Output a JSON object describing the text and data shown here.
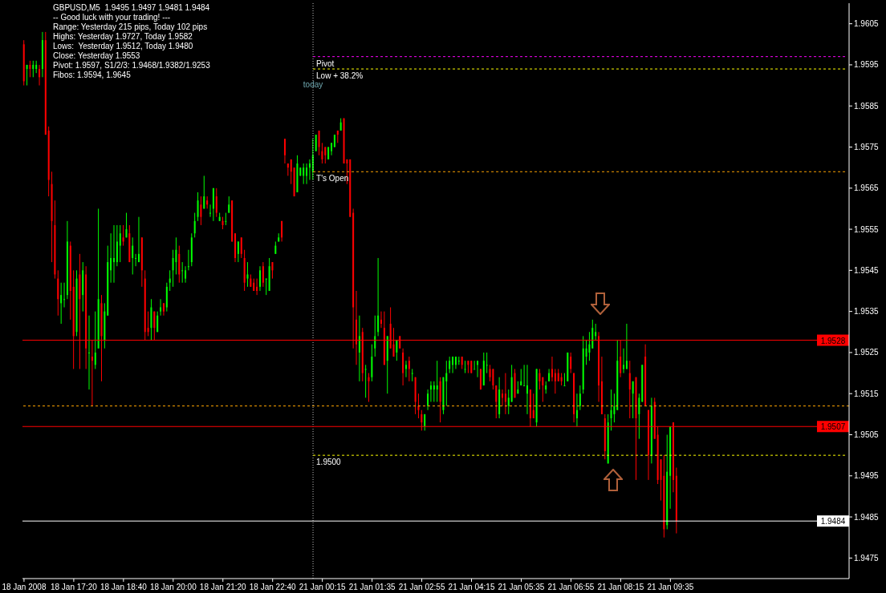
{
  "chart_data": {
    "type": "candlestick",
    "title": "GBPUSD,M5  1.9495 1.9497 1.9481 1.9484",
    "annotations": [
      "-- Good luck with your trading! ---",
      "Range: Yesterday 215 pips, Today 102 pips",
      "Highs: Yesterday 1.9727, Today 1.9582",
      "Lows:  Yesterday 1.9512, Today 1.9480",
      "Close: Yesterday 1.9553",
      "Pivot: 1.9597, S1/2/3: 1.9468/1.9382/1.9253",
      "Fibos: 1.9594, 1.9645",
      "today"
    ],
    "categories": [
      "18 Jan 2008",
      null,
      null,
      null,
      null,
      null,
      null,
      null,
      null,
      null,
      null,
      null,
      null,
      null,
      null,
      null,
      "18 Jan 17:20",
      null,
      null,
      null,
      null,
      null,
      null,
      null,
      null,
      null,
      null,
      null,
      null,
      null,
      null,
      null,
      "18 Jan 18:40",
      null,
      null,
      null,
      null,
      null,
      null,
      null,
      null,
      null,
      null,
      null,
      null,
      null,
      null,
      null,
      "18 Jan 20:00",
      null,
      null,
      null,
      null,
      null,
      null,
      null,
      null,
      null,
      null,
      null,
      null,
      null,
      null,
      null,
      "18 Jan 21:20",
      null,
      null,
      null,
      null,
      null,
      null,
      null,
      null,
      null,
      null,
      null,
      null,
      null,
      null,
      null,
      "18 Jan 22:40",
      null,
      null,
      null,
      null,
      null,
      null,
      null,
      null,
      null,
      null,
      null,
      null,
      null,
      null,
      null,
      "21 Jan 00:15",
      null,
      null,
      null,
      null,
      null,
      null,
      null,
      null,
      null,
      null,
      null,
      null,
      null,
      null,
      null,
      "21 Jan 01:35",
      null,
      null,
      null,
      null,
      null,
      null,
      null,
      null,
      null,
      null,
      null,
      null,
      null,
      null,
      null,
      "21 Jan 02:55",
      null,
      null,
      null,
      null,
      null,
      null,
      null,
      null,
      null,
      null,
      null,
      null,
      null,
      null,
      null,
      "21 Jan 04:15",
      null,
      null,
      null,
      null,
      null,
      null,
      null,
      null,
      null,
      null,
      null,
      null,
      null,
      null,
      null,
      "21 Jan 05:35",
      null,
      null,
      null,
      null,
      null,
      null,
      null,
      null,
      null,
      null,
      null,
      null,
      null,
      null,
      null,
      "21 Jan 06:55",
      null,
      null,
      null,
      null,
      null,
      null,
      null,
      null,
      null,
      null,
      null,
      null,
      null,
      null,
      null,
      "21 Jan 08:15",
      null,
      null,
      null,
      null,
      null,
      null,
      null,
      null,
      null,
      null,
      null,
      null,
      null,
      null,
      null,
      "21 Jan 09:35",
      null,
      null,
      null,
      null,
      null,
      null,
      null,
      null,
      null,
      null,
      null,
      null,
      null,
      null,
      null,
      null,
      null,
      null,
      null,
      null,
      null,
      null,
      null,
      null,
      null,
      null,
      null,
      null,
      null,
      null,
      null,
      null,
      null,
      null,
      null,
      null,
      null,
      null,
      null,
      null,
      null,
      null,
      null,
      null,
      null,
      null,
      null,
      null,
      null,
      null,
      null,
      null,
      null,
      null,
      null,
      null,
      null
    ],
    "ohlc": [
      [
        1.96,
        1.9601,
        1.959,
        1.9591
      ],
      [
        1.9594,
        1.9595,
        1.959,
        1.9595
      ],
      [
        1.9595,
        1.9596,
        1.9592,
        1.9594
      ],
      [
        1.9594,
        1.9596,
        1.9592,
        1.9595
      ],
      [
        1.9594,
        1.9596,
        1.9593,
        1.9595
      ],
      [
        1.9594,
        1.9595,
        1.959,
        1.9592
      ],
      [
        1.9594,
        1.9603,
        1.9592,
        1.9601
      ],
      [
        1.9601,
        1.9603,
        1.9578,
        1.9578
      ],
      [
        1.9579,
        1.958,
        1.9563,
        1.9567
      ],
      [
        1.9566,
        1.9569,
        1.9547,
        1.9557
      ],
      [
        1.9556,
        1.9562,
        1.9543,
        1.9544
      ],
      [
        1.9543,
        1.9545,
        1.9534,
        1.9538
      ],
      [
        1.9537,
        1.9542,
        1.9532,
        1.9539
      ],
      [
        1.9538,
        1.9542,
        1.9536,
        1.9538
      ],
      [
        1.9539,
        1.9557,
        1.9538,
        1.9552
      ],
      [
        1.9551,
        1.9552,
        1.9533,
        1.954
      ],
      [
        1.9541,
        1.9545,
        1.9521,
        1.9529
      ],
      [
        1.953,
        1.9545,
        1.9529,
        1.9543
      ],
      [
        1.9544,
        1.9549,
        1.9521,
        1.9538
      ],
      [
        1.9539,
        1.9547,
        1.9535,
        1.9545
      ],
      [
        1.9544,
        1.9546,
        1.9521,
        1.9526
      ],
      [
        1.9525,
        1.9534,
        1.9516,
        1.9525
      ],
      [
        1.9524,
        1.9528,
        1.9512,
        1.9523
      ],
      [
        1.9522,
        1.9535,
        1.9521,
        1.9525
      ],
      [
        1.9526,
        1.956,
        1.9526,
        1.9538
      ],
      [
        1.9537,
        1.9539,
        1.9518,
        1.9529
      ],
      [
        1.9528,
        1.9537,
        1.9526,
        1.9535
      ],
      [
        1.9534,
        1.9551,
        1.9534,
        1.9547
      ],
      [
        1.9545,
        1.9554,
        1.9542,
        1.9548
      ],
      [
        1.9547,
        1.9556,
        1.9542,
        1.9548
      ],
      [
        1.9547,
        1.9556,
        1.9546,
        1.9552
      ],
      [
        1.9551,
        1.9556,
        1.9547,
        1.9554
      ],
      [
        1.9553,
        1.9556,
        1.9551,
        1.9552
      ],
      [
        1.9553,
        1.9559,
        1.9553,
        1.9555
      ],
      [
        1.9554,
        1.9556,
        1.9547,
        1.9547
      ],
      [
        1.9548,
        1.9553,
        1.9544,
        1.9551
      ],
      [
        1.9548,
        1.9549,
        1.9546,
        1.9548
      ],
      [
        1.9547,
        1.9558,
        1.9547,
        1.9549
      ],
      [
        1.9553,
        1.9553,
        1.9541,
        1.9545
      ],
      [
        1.9543,
        1.9545,
        1.9528,
        1.953
      ],
      [
        1.9531,
        1.9535,
        1.9529,
        1.953
      ],
      [
        1.9531,
        1.9538,
        1.9528,
        1.9536
      ],
      [
        1.9535,
        1.9535,
        1.9528,
        1.9531
      ],
      [
        1.953,
        1.9535,
        1.953,
        1.9534
      ],
      [
        1.9535,
        1.9538,
        1.9534,
        1.9536
      ],
      [
        1.9537,
        1.9537,
        1.9534,
        1.9535
      ],
      [
        1.9536,
        1.9542,
        1.9535,
        1.9541
      ],
      [
        1.9542,
        1.9545,
        1.954,
        1.9543
      ],
      [
        1.9545,
        1.955,
        1.9541,
        1.9548
      ],
      [
        1.9547,
        1.9553,
        1.9544,
        1.955
      ],
      [
        1.9549,
        1.9551,
        1.9542,
        1.9544
      ],
      [
        1.9545,
        1.9547,
        1.9542,
        1.9545
      ],
      [
        1.9543,
        1.9546,
        1.9542,
        1.9545
      ],
      [
        1.9546,
        1.955,
        1.9545,
        1.9546
      ],
      [
        1.9547,
        1.9554,
        1.9546,
        1.9553
      ],
      [
        1.9554,
        1.9559,
        1.9553,
        1.9557
      ],
      [
        1.9558,
        1.9564,
        1.9557,
        1.9562
      ],
      [
        1.9561,
        1.9563,
        1.9556,
        1.9558
      ],
      [
        1.956,
        1.9568,
        1.956,
        1.9563
      ],
      [
        1.9562,
        1.9563,
        1.956,
        1.9561
      ],
      [
        1.9559,
        1.9561,
        1.9558,
        1.9559
      ],
      [
        1.956,
        1.9565,
        1.9557,
        1.9565
      ],
      [
        1.9563,
        1.9565,
        1.9558,
        1.9559
      ],
      [
        1.9557,
        1.9559,
        1.9557,
        1.9558
      ],
      [
        1.9557,
        1.9558,
        1.9555,
        1.9556
      ],
      [
        1.9557,
        1.9559,
        1.9556,
        1.9557
      ],
      [
        1.9559,
        1.9563,
        1.9559,
        1.9561
      ],
      [
        1.9562,
        1.9562,
        1.9552,
        1.9552
      ],
      [
        1.9554,
        1.9554,
        1.9547,
        1.9548
      ],
      [
        1.9549,
        1.9552,
        1.9547,
        1.9552
      ],
      [
        1.9553,
        1.9553,
        1.9548,
        1.9549
      ],
      [
        1.9548,
        1.955,
        1.954,
        1.9542
      ],
      [
        1.9543,
        1.9547,
        1.9541,
        1.9544
      ],
      [
        1.9543,
        1.9544,
        1.9541,
        1.9541
      ],
      [
        1.9542,
        1.9543,
        1.954,
        1.954
      ],
      [
        1.9541,
        1.9543,
        1.9539,
        1.954
      ],
      [
        1.9541,
        1.9546,
        1.954,
        1.9545
      ],
      [
        1.9546,
        1.9547,
        1.9541,
        1.9542
      ],
      [
        1.9543,
        1.9543,
        1.9539,
        1.9543
      ],
      [
        1.954,
        1.9548,
        1.954,
        1.9546
      ],
      [
        1.9547,
        1.9547,
        1.9543,
        1.9545
      ],
      [
        1.9549,
        1.9552,
        1.9549,
        1.9551
      ],
      [
        1.9552,
        1.9554,
        1.9552,
        1.9553
      ],
      [
        1.9557,
        1.9557,
        1.9552,
        1.9553
      ],
      [
        1.9577,
        1.9577,
        1.9571,
        1.9573
      ],
      [
        1.9571,
        1.9571,
        1.9568,
        1.957
      ],
      [
        1.9572,
        1.9572,
        1.9566,
        1.9569
      ],
      [
        1.957,
        1.957,
        1.9563,
        1.9563
      ],
      [
        1.9564,
        1.9573,
        1.9564,
        1.9571
      ],
      [
        1.9568,
        1.957,
        1.9568,
        1.957
      ],
      [
        1.9568,
        1.9571,
        1.9566,
        1.957
      ],
      [
        1.9568,
        1.9571,
        1.9566,
        1.957
      ],
      [
        1.957,
        1.9572,
        1.9567,
        1.9571
      ],
      [
        1.9569,
        1.9577,
        1.9567,
        1.9573
      ],
      [
        1.9574,
        1.9578,
        1.9574,
        1.9578
      ],
      [
        1.9579,
        1.9579,
        1.9573,
        1.9575
      ],
      [
        1.9574,
        1.9576,
        1.9571,
        1.9572
      ],
      [
        1.9575,
        1.9575,
        1.9571,
        1.9573
      ],
      [
        1.9572,
        1.9575,
        1.9572,
        1.9575
      ],
      [
        1.9574,
        1.9576,
        1.9573,
        1.9576
      ],
      [
        1.9575,
        1.9578,
        1.9575,
        1.9578
      ],
      [
        1.9579,
        1.9579,
        1.9576,
        1.9578
      ],
      [
        1.9579,
        1.9582,
        1.9579,
        1.9581
      ],
      [
        1.9582,
        1.9582,
        1.9571,
        1.9571
      ],
      [
        1.9572,
        1.9572,
        1.9566,
        1.9571
      ],
      [
        1.9572,
        1.9572,
        1.9558,
        1.9558
      ],
      [
        1.9559,
        1.956,
        1.9526,
        1.9536
      ],
      [
        1.9533,
        1.954,
        1.9522,
        1.9527
      ],
      [
        1.9525,
        1.9534,
        1.9518,
        1.9529
      ],
      [
        1.953,
        1.9531,
        1.9518,
        1.952
      ],
      [
        1.9521,
        1.9522,
        1.9514,
        1.9521
      ],
      [
        1.9519,
        1.952,
        1.9513,
        1.9518
      ],
      [
        1.9519,
        1.9527,
        1.9518,
        1.9524
      ],
      [
        1.9526,
        1.9534,
        1.9524,
        1.9529
      ],
      [
        1.953,
        1.9548,
        1.9529,
        1.9534
      ],
      [
        1.9533,
        1.9535,
        1.9531,
        1.9532
      ],
      [
        1.9531,
        1.9535,
        1.9522,
        1.9522
      ],
      [
        1.9523,
        1.9529,
        1.9515,
        1.9529
      ],
      [
        1.9532,
        1.9536,
        1.9526,
        1.9526
      ],
      [
        1.9527,
        1.9531,
        1.9524,
        1.9524
      ],
      [
        1.9525,
        1.9528,
        1.9523,
        1.9528
      ],
      [
        1.9529,
        1.9529,
        1.9526,
        1.9526
      ],
      [
        1.9525,
        1.9526,
        1.9517,
        1.952
      ],
      [
        1.9521,
        1.9523,
        1.9519,
        1.9522
      ],
      [
        1.9523,
        1.9524,
        1.9518,
        1.9521
      ],
      [
        1.952,
        1.9521,
        1.9518,
        1.952
      ],
      [
        1.9519,
        1.9519,
        1.951,
        1.9513
      ],
      [
        1.9512,
        1.9515,
        1.9509,
        1.9511
      ],
      [
        1.951,
        1.9511,
        1.9506,
        1.9508
      ],
      [
        1.9507,
        1.951,
        1.9506,
        1.951
      ],
      [
        1.9512,
        1.9516,
        1.9511,
        1.9515
      ],
      [
        1.9516,
        1.9518,
        1.9513,
        1.9517
      ],
      [
        1.9516,
        1.9518,
        1.9513,
        1.9517
      ],
      [
        1.9516,
        1.9523,
        1.9513,
        1.9517
      ],
      [
        1.9518,
        1.9519,
        1.9508,
        1.9513
      ],
      [
        1.9511,
        1.9519,
        1.951,
        1.9519
      ],
      [
        1.9518,
        1.9523,
        1.9512,
        1.952
      ],
      [
        1.9521,
        1.9524,
        1.952,
        1.9523
      ],
      [
        1.9522,
        1.9524,
        1.952,
        1.9524
      ],
      [
        1.9522,
        1.9524,
        1.9521,
        1.9524
      ],
      [
        1.9523,
        1.9524,
        1.9522,
        1.9523
      ],
      [
        1.9524,
        1.9524,
        1.9521,
        1.9522
      ],
      [
        1.9521,
        1.9523,
        1.952,
        1.9521
      ],
      [
        1.9523,
        1.9523,
        1.952,
        1.9522
      ],
      [
        1.9523,
        1.9523,
        1.952,
        1.952
      ],
      [
        1.9521,
        1.9523,
        1.9521,
        1.9521
      ],
      [
        1.9522,
        1.9523,
        1.9519,
        1.9523
      ],
      [
        1.9521,
        1.9521,
        1.9516,
        1.9516
      ],
      [
        1.9517,
        1.9525,
        1.9517,
        1.9523
      ],
      [
        1.9522,
        1.9525,
        1.952,
        1.9522
      ],
      [
        1.9521,
        1.9522,
        1.9518,
        1.9519
      ],
      [
        1.9521,
        1.9521,
        1.9516,
        1.9517
      ],
      [
        1.9517,
        1.9517,
        1.9509,
        1.9513
      ],
      [
        1.951,
        1.9519,
        1.9509,
        1.9516
      ],
      [
        1.9515,
        1.9516,
        1.9512,
        1.9514
      ],
      [
        1.9515,
        1.952,
        1.951,
        1.9513
      ],
      [
        1.9512,
        1.9516,
        1.951,
        1.9514
      ],
      [
        1.9513,
        1.9522,
        1.9513,
        1.9519
      ],
      [
        1.952,
        1.9521,
        1.9514,
        1.9514
      ],
      [
        1.9515,
        1.9518,
        1.9515,
        1.9516
      ],
      [
        1.9517,
        1.9521,
        1.9517,
        1.9518
      ],
      [
        1.9517,
        1.9522,
        1.9517,
        1.9517
      ],
      [
        1.9515,
        1.9522,
        1.951,
        1.9517
      ],
      [
        1.9516,
        1.9516,
        1.9507,
        1.9509
      ],
      [
        1.9511,
        1.9515,
        1.9509,
        1.9509
      ],
      [
        1.9508,
        1.9521,
        1.9507,
        1.9521
      ],
      [
        1.952,
        1.9521,
        1.9516,
        1.9518
      ],
      [
        1.9519,
        1.9519,
        1.9513,
        1.9517
      ],
      [
        1.9516,
        1.9518,
        1.9515,
        1.9517
      ],
      [
        1.9518,
        1.9521,
        1.9518,
        1.952
      ],
      [
        1.9521,
        1.9524,
        1.9518,
        1.9519
      ],
      [
        1.952,
        1.9521,
        1.9515,
        1.9518
      ],
      [
        1.952,
        1.9521,
        1.9518,
        1.9518
      ],
      [
        1.9519,
        1.952,
        1.9517,
        1.9518
      ],
      [
        1.9517,
        1.952,
        1.9517,
        1.9517
      ],
      [
        1.9518,
        1.9525,
        1.9518,
        1.9525
      ],
      [
        1.9524,
        1.9525,
        1.952,
        1.9521
      ],
      [
        1.952,
        1.952,
        1.9508,
        1.951
      ],
      [
        1.9509,
        1.9515,
        1.9507,
        1.9511
      ],
      [
        1.9512,
        1.9517,
        1.9511,
        1.9515
      ],
      [
        1.9516,
        1.9529,
        1.9515,
        1.9526
      ],
      [
        1.9524,
        1.9528,
        1.9522,
        1.9526
      ],
      [
        1.9525,
        1.953,
        1.9523,
        1.9527
      ],
      [
        1.9526,
        1.9533,
        1.9526,
        1.9531
      ],
      [
        1.9529,
        1.9532,
        1.9528,
        1.953
      ],
      [
        1.9529,
        1.953,
        1.9513,
        1.9517
      ],
      [
        1.9518,
        1.9524,
        1.951,
        1.951
      ],
      [
        1.9509,
        1.951,
        1.9499,
        1.9501
      ],
      [
        1.9498,
        1.951,
        1.9498,
        1.9508
      ],
      [
        1.9509,
        1.9516,
        1.9506,
        1.9511
      ],
      [
        1.951,
        1.9515,
        1.9508,
        1.9512
      ],
      [
        1.9511,
        1.9528,
        1.9511,
        1.9523
      ],
      [
        1.9524,
        1.9528,
        1.9519,
        1.952
      ],
      [
        1.9521,
        1.9526,
        1.952,
        1.9522
      ],
      [
        1.9521,
        1.9532,
        1.9521,
        1.9523
      ],
      [
        1.952,
        1.9523,
        1.9509,
        1.9516
      ],
      [
        1.9515,
        1.9518,
        1.9509,
        1.9518
      ],
      [
        1.9519,
        1.9519,
        1.9494,
        1.9509
      ],
      [
        1.951,
        1.9515,
        1.9504,
        1.9514
      ],
      [
        1.9513,
        1.9522,
        1.9513,
        1.9522
      ],
      [
        1.9524,
        1.9527,
        1.9512,
        1.9512
      ],
      [
        1.9511,
        1.9511,
        1.9494,
        1.95
      ],
      [
        1.95,
        1.9514,
        1.9498,
        1.9512
      ],
      [
        1.9513,
        1.9514,
        1.9504,
        1.9504
      ],
      [
        1.9505,
        1.9507,
        1.9493,
        1.9494
      ],
      [
        1.9499,
        1.9499,
        1.9489,
        1.9494
      ],
      [
        1.9495,
        1.95,
        1.948,
        1.9482
      ],
      [
        1.9483,
        1.9505,
        1.9482,
        1.9496
      ],
      [
        1.9495,
        1.9507,
        1.9487,
        1.9507
      ],
      [
        1.9508,
        1.9508,
        1.9491,
        1.9494
      ],
      [
        1.9495,
        1.9497,
        1.9481,
        1.9484
      ],
      null,
      null,
      null,
      null,
      null,
      null,
      null,
      null,
      null,
      null,
      null,
      null,
      null,
      null,
      null,
      null,
      null,
      null,
      null,
      null,
      null,
      null,
      null,
      null,
      null,
      null,
      null,
      null,
      null,
      null,
      null,
      null,
      null,
      null,
      null,
      null,
      null,
      null,
      null,
      null,
      null,
      null,
      null,
      null,
      null,
      null,
      null,
      null,
      null,
      null,
      null,
      null,
      null,
      null,
      null
    ],
    "ylim": [
      1.947,
      1.961
    ],
    "yticks": [
      1.9475,
      1.9485,
      1.9495,
      1.9505,
      1.9515,
      1.9525,
      1.9535,
      1.9545,
      1.9555,
      1.9565,
      1.9575,
      1.9585,
      1.9595,
      1.9605
    ],
    "ref_lines": [
      {
        "axis": "y",
        "value": 1.9597,
        "label": "Pivot",
        "color": "#ff00ff",
        "line_style": "dashed"
      },
      {
        "axis": "y",
        "value": 1.9594,
        "label": "Low + 38.2%",
        "color": "#ffff00",
        "line_style": "dashed"
      },
      {
        "axis": "y",
        "value": 1.9569,
        "label": "T's Open",
        "color": "#ffa500",
        "line_style": "dashed"
      },
      {
        "axis": "y",
        "value": 1.9512,
        "color": "#ffa500",
        "line_style": "dashed"
      },
      {
        "axis": "y",
        "value": 1.95,
        "label": "1.9500",
        "color": "#ffff00",
        "line_style": "dashed"
      },
      {
        "axis": "y",
        "value": 1.9528,
        "label": "1.9528",
        "color": "#ff0000",
        "line_style": "solid"
      },
      {
        "axis": "y",
        "value": 1.9507,
        "label": "1.9507",
        "color": "#ff0000",
        "line_style": "solid"
      },
      {
        "axis": "y",
        "value": 1.9484,
        "label": "1.9484",
        "color": "#ffffff",
        "line_style": "solid"
      }
    ]
  }
}
